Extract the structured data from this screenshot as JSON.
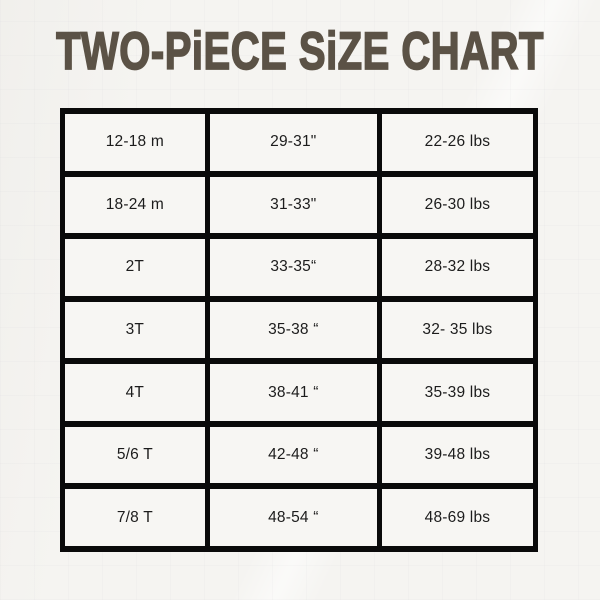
{
  "title": "TWO-PiECE SiZE CHART",
  "colors": {
    "title": "#5b5246",
    "table_border": "#0a0a0a",
    "background": "#f5f4f1"
  },
  "chart_data": {
    "type": "table",
    "title": "TWO-PiECE SiZE CHART",
    "grid": "thick black cell borders, no header row",
    "rows": [
      [
        "12-18 m",
        "29-31\"",
        "22-26 lbs"
      ],
      [
        "18-24 m",
        "31-33\"",
        "26-30 lbs"
      ],
      [
        "2T",
        "33-35“",
        "28-32 lbs"
      ],
      [
        "3T",
        "35-38 “",
        "32- 35 lbs"
      ],
      [
        "4T",
        "38-41 “",
        "35-39 lbs"
      ],
      [
        "5/6 T",
        "42-48 “",
        "39-48 lbs"
      ],
      [
        "7/8 T",
        "48-54 “",
        "48-69 lbs"
      ]
    ]
  }
}
